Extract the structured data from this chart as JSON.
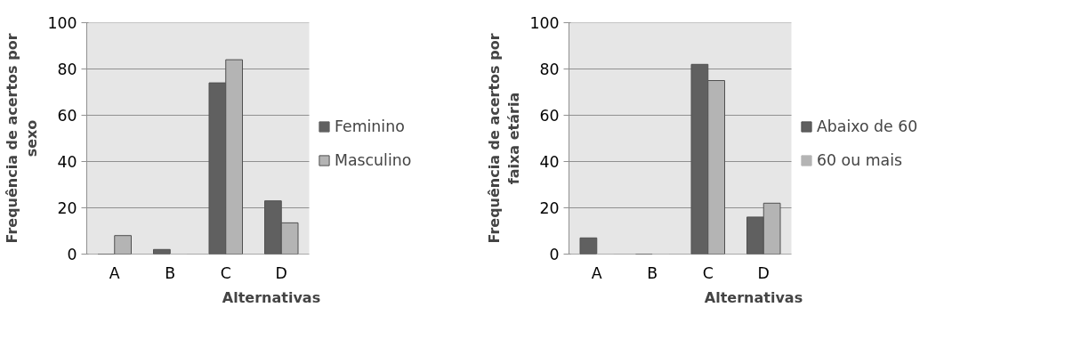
{
  "chart_data": [
    {
      "type": "bar",
      "categories": [
        "A",
        "B",
        "C",
        "D"
      ],
      "xlabel": "Alternativas",
      "ylabel": "Frequência de acertos por\nsexo",
      "ylim": [
        0,
        100
      ],
      "yticks": [
        0,
        20,
        40,
        60,
        80,
        100
      ],
      "grid": "y",
      "legend": "right",
      "series": [
        {
          "name": "Feminino",
          "color": "#606060",
          "values": [
            0,
            2,
            74,
            23
          ]
        },
        {
          "name": "Masculino",
          "color": "#b4b4b4",
          "values": [
            8,
            0,
            84,
            13.5
          ]
        }
      ]
    },
    {
      "type": "bar",
      "categories": [
        "A",
        "B",
        "C",
        "D"
      ],
      "xlabel": "Alternativas",
      "ylabel": "Frequência de acertos por\nfaixa etária",
      "ylim": [
        0,
        100
      ],
      "yticks": [
        0,
        20,
        40,
        60,
        80,
        100
      ],
      "grid": "y",
      "legend": "right",
      "series": [
        {
          "name": "Abaixo de 60",
          "color": "#606060",
          "values": [
            7,
            0,
            82,
            16
          ]
        },
        {
          "name": "60 ou mais",
          "color": "#b4b4b4",
          "values": [
            0,
            0,
            75,
            22
          ]
        }
      ]
    }
  ]
}
